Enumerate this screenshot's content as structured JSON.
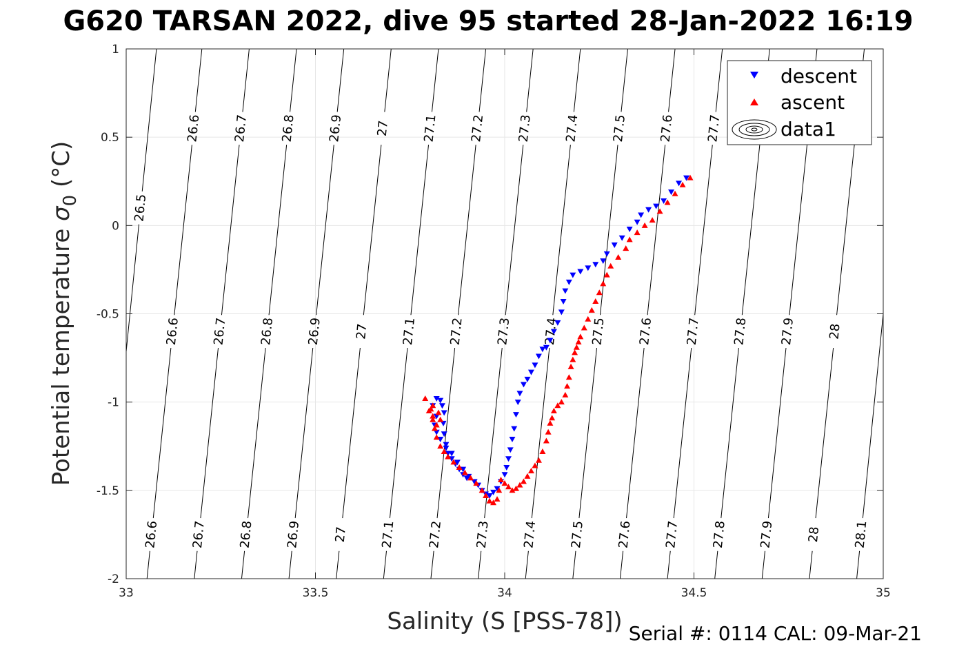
{
  "chart_data": {
    "type": "scatter",
    "title": "G620 TARSAN 2022, dive 95 started 28-Jan-2022 16:19",
    "xlabel": "Salinity (S [PSS-78])",
    "ylabel_main": "Potential temperature ",
    "ylabel_symbol": "σ",
    "ylabel_sub": "0",
    "ylabel_unit": " (°C)",
    "xlim": [
      33,
      35
    ],
    "ylim": [
      -2,
      1
    ],
    "xticks": [
      33,
      33.5,
      34,
      34.5,
      35
    ],
    "xtick_labels": [
      "33",
      "33.5",
      "34",
      "34.5",
      "35"
    ],
    "yticks": [
      -2,
      -1.5,
      -1,
      -0.5,
      0,
      0.5,
      1
    ],
    "ytick_labels": [
      "-2",
      "-1.5",
      "-1",
      "-0.5",
      "0",
      "0.5",
      "1"
    ],
    "grid": true,
    "legend_position": "top-right",
    "footer": "Serial #: 0114  CAL: 09-Mar-21",
    "contours": {
      "levels": [
        26.5,
        26.6,
        26.7,
        26.8,
        26.9,
        27,
        27.1,
        27.2,
        27.3,
        27.4,
        27.5,
        27.6,
        27.7,
        27.8,
        27.9,
        28,
        28.1
      ],
      "labels": [
        "26.5",
        "26.6",
        "26.7",
        "26.8",
        "26.9",
        "27",
        "27.1",
        "27.2",
        "27.3",
        "27.4",
        "27.5",
        "27.6",
        "27.7",
        "27.8",
        "27.9",
        "28",
        "28.1"
      ],
      "salinity_at_T_minus2": [
        32.94,
        33.055,
        33.18,
        33.305,
        33.43,
        33.555,
        33.68,
        33.805,
        33.93,
        34.055,
        34.18,
        34.305,
        34.43,
        34.555,
        34.68,
        34.805,
        34.93
      ],
      "salinity_at_T_plus1": [
        33.08,
        33.2,
        33.325,
        33.45,
        33.575,
        33.7,
        33.825,
        33.95,
        34.075,
        34.2,
        34.325,
        34.45,
        34.575,
        34.7,
        34.825,
        34.95,
        35.07
      ],
      "label_rows_T": [
        -1.75,
        -0.6,
        0.55
      ]
    },
    "series": [
      {
        "name": "descent",
        "color": "#0000ff",
        "marker": "triangle-down",
        "points": [
          [
            34.48,
            0.27
          ],
          [
            34.46,
            0.24
          ],
          [
            34.44,
            0.19
          ],
          [
            34.42,
            0.14
          ],
          [
            34.4,
            0.11
          ],
          [
            34.38,
            0.09
          ],
          [
            34.36,
            0.06
          ],
          [
            34.35,
            0.02
          ],
          [
            34.33,
            -0.02
          ],
          [
            34.31,
            -0.07
          ],
          [
            34.29,
            -0.11
          ],
          [
            34.27,
            -0.16
          ],
          [
            34.26,
            -0.2
          ],
          [
            34.24,
            -0.22
          ],
          [
            34.22,
            -0.24
          ],
          [
            34.2,
            -0.26
          ],
          [
            34.18,
            -0.28
          ],
          [
            34.17,
            -0.32
          ],
          [
            34.16,
            -0.37
          ],
          [
            34.155,
            -0.43
          ],
          [
            34.15,
            -0.49
          ],
          [
            34.14,
            -0.55
          ],
          [
            34.13,
            -0.6
          ],
          [
            34.12,
            -0.65
          ],
          [
            34.11,
            -0.69
          ],
          [
            34.1,
            -0.7
          ],
          [
            34.09,
            -0.74
          ],
          [
            34.08,
            -0.79
          ],
          [
            34.07,
            -0.83
          ],
          [
            34.06,
            -0.87
          ],
          [
            34.05,
            -0.9
          ],
          [
            34.04,
            -0.95
          ],
          [
            34.035,
            -1.0
          ],
          [
            34.03,
            -1.07
          ],
          [
            34.025,
            -1.15
          ],
          [
            34.02,
            -1.21
          ],
          [
            34.015,
            -1.27
          ],
          [
            34.01,
            -1.32
          ],
          [
            34.005,
            -1.37
          ],
          [
            34.0,
            -1.41
          ],
          [
            33.99,
            -1.45
          ],
          [
            33.98,
            -1.49
          ],
          [
            33.97,
            -1.51
          ],
          [
            33.96,
            -1.53
          ],
          [
            33.95,
            -1.52
          ],
          [
            33.94,
            -1.5
          ],
          [
            33.93,
            -1.47
          ],
          [
            33.92,
            -1.45
          ],
          [
            33.9,
            -1.43
          ],
          [
            33.89,
            -1.41
          ],
          [
            33.88,
            -1.38
          ],
          [
            33.87,
            -1.35
          ],
          [
            33.86,
            -1.32
          ],
          [
            33.85,
            -1.29
          ],
          [
            33.845,
            -1.24
          ],
          [
            33.84,
            -1.18
          ],
          [
            33.838,
            -1.12
          ],
          [
            33.84,
            -1.06
          ],
          [
            33.835,
            -1.02
          ],
          [
            33.83,
            -0.99
          ],
          [
            33.82,
            -0.98
          ],
          [
            33.81,
            -1.02
          ],
          [
            33.82,
            -1.08
          ],
          [
            33.815,
            -1.13
          ],
          [
            33.82,
            -1.17
          ],
          [
            33.83,
            -1.21
          ],
          [
            33.845,
            -1.26
          ],
          [
            33.86,
            -1.29
          ],
          [
            33.875,
            -1.34
          ],
          [
            33.89,
            -1.38
          ],
          [
            33.905,
            -1.42
          ],
          [
            33.92,
            -1.45
          ]
        ]
      },
      {
        "name": "ascent",
        "color": "#ff0000",
        "marker": "triangle-up",
        "points": [
          [
            34.49,
            0.27
          ],
          [
            34.47,
            0.23
          ],
          [
            34.45,
            0.18
          ],
          [
            34.43,
            0.13
          ],
          [
            34.41,
            0.08
          ],
          [
            34.39,
            0.03
          ],
          [
            34.37,
            0.0
          ],
          [
            34.35,
            -0.04
          ],
          [
            34.33,
            -0.08
          ],
          [
            34.32,
            -0.13
          ],
          [
            34.3,
            -0.18
          ],
          [
            34.28,
            -0.23
          ],
          [
            34.27,
            -0.28
          ],
          [
            34.26,
            -0.33
          ],
          [
            34.25,
            -0.38
          ],
          [
            34.24,
            -0.43
          ],
          [
            34.23,
            -0.48
          ],
          [
            34.22,
            -0.53
          ],
          [
            34.21,
            -0.58
          ],
          [
            34.2,
            -0.63
          ],
          [
            34.195,
            -0.66
          ],
          [
            34.19,
            -0.69
          ],
          [
            34.185,
            -0.72
          ],
          [
            34.18,
            -0.76
          ],
          [
            34.175,
            -0.8
          ],
          [
            34.17,
            -0.86
          ],
          [
            34.165,
            -0.91
          ],
          [
            34.16,
            -0.96
          ],
          [
            34.15,
            -1.0
          ],
          [
            34.14,
            -1.02
          ],
          [
            34.13,
            -1.05
          ],
          [
            34.125,
            -1.09
          ],
          [
            34.12,
            -1.12
          ],
          [
            34.115,
            -1.17
          ],
          [
            34.11,
            -1.22
          ],
          [
            34.1,
            -1.28
          ],
          [
            34.09,
            -1.33
          ],
          [
            34.08,
            -1.36
          ],
          [
            34.07,
            -1.39
          ],
          [
            34.06,
            -1.42
          ],
          [
            34.05,
            -1.45
          ],
          [
            34.04,
            -1.47
          ],
          [
            34.03,
            -1.49
          ],
          [
            34.02,
            -1.5
          ],
          [
            34.01,
            -1.48
          ],
          [
            34.0,
            -1.46
          ],
          [
            33.99,
            -1.44
          ],
          [
            33.985,
            -1.5
          ],
          [
            33.98,
            -1.55
          ],
          [
            33.97,
            -1.57
          ],
          [
            33.96,
            -1.56
          ],
          [
            33.95,
            -1.53
          ],
          [
            33.94,
            -1.5
          ],
          [
            33.925,
            -1.46
          ],
          [
            33.91,
            -1.43
          ],
          [
            33.895,
            -1.4
          ],
          [
            33.88,
            -1.37
          ],
          [
            33.865,
            -1.34
          ],
          [
            33.85,
            -1.31
          ],
          [
            33.84,
            -1.28
          ],
          [
            33.83,
            -1.25
          ],
          [
            33.82,
            -1.2
          ],
          [
            33.815,
            -1.15
          ],
          [
            33.81,
            -1.1
          ],
          [
            33.8,
            -1.05
          ],
          [
            33.79,
            -0.98
          ],
          [
            33.81,
            -1.02
          ],
          [
            33.825,
            -1.06
          ],
          [
            33.83,
            -1.1
          ],
          [
            33.82,
            -1.13
          ],
          [
            33.81,
            -1.08
          ],
          [
            33.805,
            -1.04
          ]
        ]
      }
    ],
    "legend_extra": "data1"
  }
}
